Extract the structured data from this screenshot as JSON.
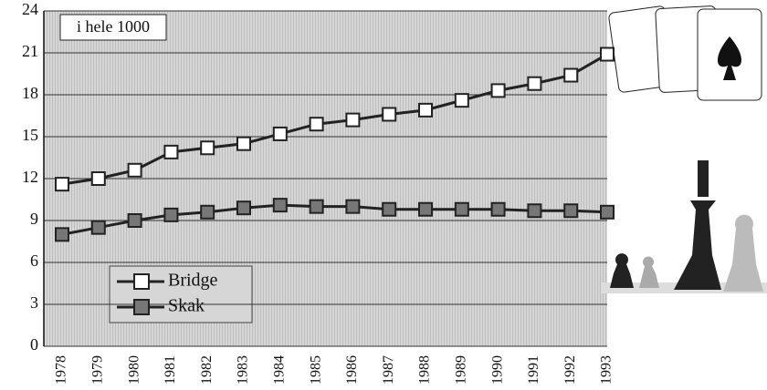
{
  "chart_data": {
    "type": "line",
    "annotation": "i hele 1000",
    "categories": [
      "1978",
      "1979",
      "1980",
      "1981",
      "1982",
      "1983",
      "1984",
      "1985",
      "1986",
      "1987",
      "1988",
      "1989",
      "1990",
      "1991",
      "1992",
      "1993"
    ],
    "series": [
      {
        "name": "Bridge",
        "color": "#ffffff",
        "values": [
          11.6,
          12.0,
          12.6,
          13.9,
          14.2,
          14.5,
          15.2,
          15.9,
          16.2,
          16.6,
          16.9,
          17.6,
          18.3,
          18.8,
          19.4,
          20.9
        ]
      },
      {
        "name": "Skak",
        "color": "#777777",
        "values": [
          8.0,
          8.5,
          9.0,
          9.4,
          9.6,
          9.9,
          10.1,
          10.0,
          10.0,
          9.8,
          9.8,
          9.8,
          9.8,
          9.7,
          9.7,
          9.6
        ]
      }
    ],
    "ylim": [
      0,
      24
    ],
    "yticks": [
      0,
      3,
      6,
      9,
      12,
      15,
      18,
      21,
      24
    ],
    "grid": true
  }
}
